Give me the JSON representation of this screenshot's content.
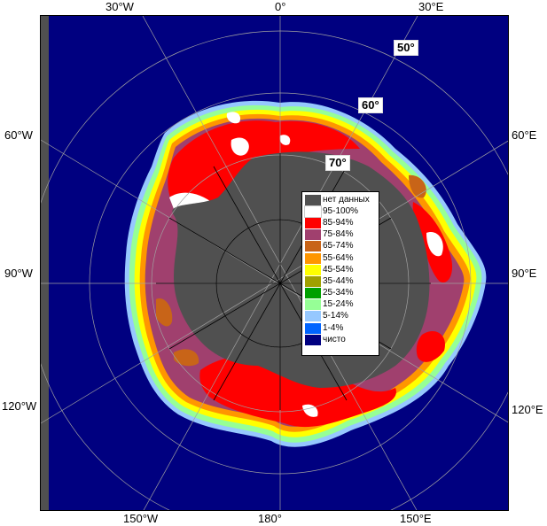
{
  "map": {
    "longitude_labels": [
      {
        "id": "lon-30w-top",
        "text": "30°W"
      },
      {
        "id": "lon-0-top",
        "text": "0°"
      },
      {
        "id": "lon-30e-top",
        "text": "30°E"
      },
      {
        "id": "lon-60w",
        "text": "60°W"
      },
      {
        "id": "lon-60e",
        "text": "60°E"
      },
      {
        "id": "lon-90w",
        "text": "90°W"
      },
      {
        "id": "lon-90e",
        "text": "90°E"
      },
      {
        "id": "lon-120w",
        "text": "120°W"
      },
      {
        "id": "lon-120e",
        "text": "120°E"
      },
      {
        "id": "lon-150w-bottom",
        "text": "150°W"
      },
      {
        "id": "lon-180-bottom",
        "text": "180°"
      },
      {
        "id": "lon-150e-bottom",
        "text": "150°E"
      }
    ],
    "latitude_labels": [
      {
        "id": "lat-50",
        "text": "50°"
      },
      {
        "id": "lat-60",
        "text": "60°"
      },
      {
        "id": "lat-70",
        "text": "70°"
      }
    ],
    "colors": {
      "ocean": "#000080",
      "no_data": "#505050",
      "graticule": "#a0a0a0",
      "coast_line": "#000000"
    }
  },
  "legend": {
    "items": [
      {
        "label": "нет данных",
        "color": "#505050"
      },
      {
        "label": "95-100%",
        "color": "#ffffff"
      },
      {
        "label": "85-94%",
        "color": "#ff0000"
      },
      {
        "label": "75-84%",
        "color": "#a0406e"
      },
      {
        "label": "65-74%",
        "color": "#c86418"
      },
      {
        "label": "55-64%",
        "color": "#ff9600"
      },
      {
        "label": "45-54%",
        "color": "#ffff00"
      },
      {
        "label": "35-44%",
        "color": "#a0a000"
      },
      {
        "label": "25-34%",
        "color": "#00a000"
      },
      {
        "label": "15-24%",
        "color": "#96ff96"
      },
      {
        "label": "5-14%",
        "color": "#96c8ff"
      },
      {
        "label": "1-4%",
        "color": "#0064ff"
      },
      {
        "label": "чисто",
        "color": "#000080"
      }
    ]
  }
}
